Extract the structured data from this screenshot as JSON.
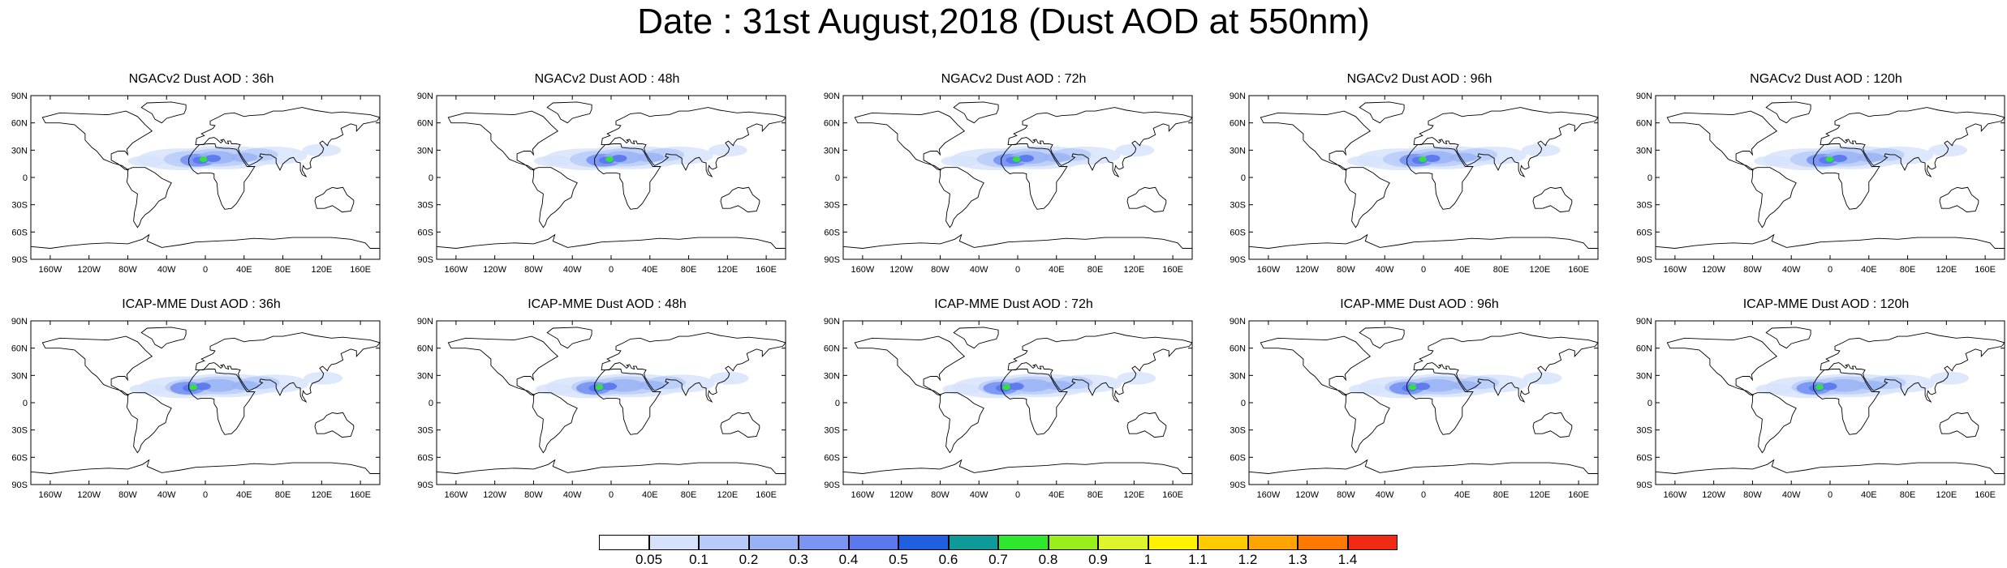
{
  "figure_title": "Date : 31st August,2018 (Dust AOD at 550nm)",
  "lat_ticks": [
    "90N",
    "60N",
    "30N",
    "0",
    "30S",
    "60S",
    "90S"
  ],
  "lon_ticks": [
    "160W",
    "120W",
    "80W",
    "40W",
    "0",
    "40E",
    "80E",
    "120E",
    "160E"
  ],
  "panels": [
    {
      "title": "NGACv2 Dust AOD : 36h",
      "model": "NGACv2",
      "lead": "36h"
    },
    {
      "title": "NGACv2 Dust AOD : 48h",
      "model": "NGACv2",
      "lead": "48h"
    },
    {
      "title": "NGACv2 Dust AOD : 72h",
      "model": "NGACv2",
      "lead": "72h"
    },
    {
      "title": "NGACv2 Dust AOD : 96h",
      "model": "NGACv2",
      "lead": "96h"
    },
    {
      "title": "NGACv2 Dust AOD : 120h",
      "model": "NGACv2",
      "lead": "120h"
    },
    {
      "title": "ICAP-MME Dust AOD : 36h",
      "model": "ICAP-MME",
      "lead": "36h"
    },
    {
      "title": "ICAP-MME Dust AOD : 48h",
      "model": "ICAP-MME",
      "lead": "48h"
    },
    {
      "title": "ICAP-MME Dust AOD : 72h",
      "model": "ICAP-MME",
      "lead": "72h"
    },
    {
      "title": "ICAP-MME Dust AOD : 96h",
      "model": "ICAP-MME",
      "lead": "96h"
    },
    {
      "title": "ICAP-MME Dust AOD : 120h",
      "model": "ICAP-MME",
      "lead": "120h"
    }
  ],
  "colorbar": {
    "labels": [
      "0.05",
      "0.1",
      "0.2",
      "0.3",
      "0.4",
      "0.5",
      "0.6",
      "0.7",
      "0.8",
      "0.9",
      "1",
      "1.1",
      "1.2",
      "1.3",
      "1.4"
    ],
    "colors": [
      "#ffffff",
      "#d6e2fb",
      "#b6cbf8",
      "#98b3f5",
      "#7a96f2",
      "#5b78ef",
      "#1f5fe0",
      "#0f9a9a",
      "#2ee82e",
      "#99ef1a",
      "#ddf52a",
      "#fff200",
      "#ffca00",
      "#ffa400",
      "#ff7800",
      "#f22a14"
    ]
  }
}
